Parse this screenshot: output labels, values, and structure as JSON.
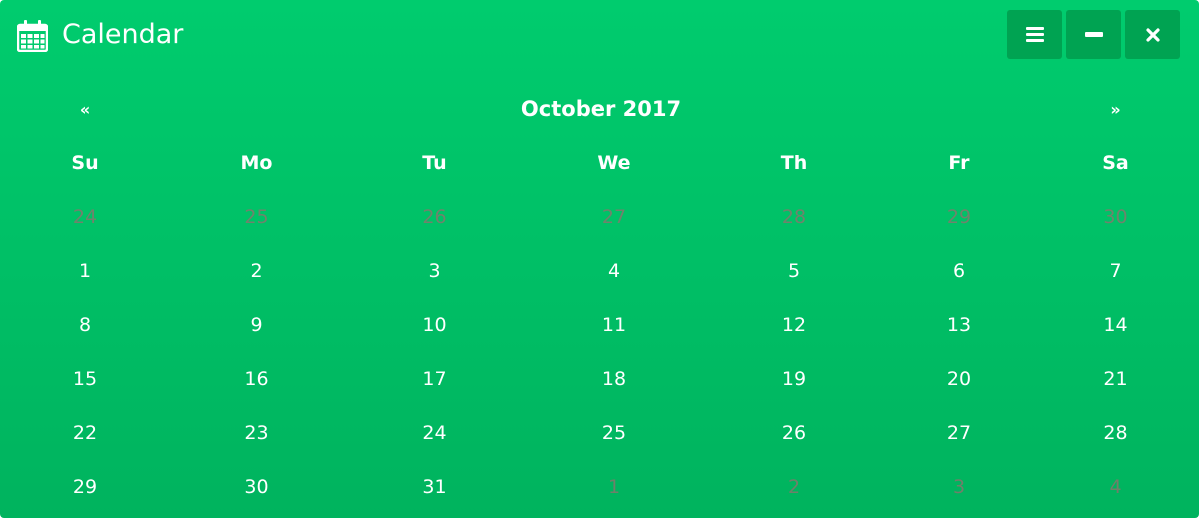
{
  "header": {
    "title": "Calendar",
    "title_icon": "calendar-icon",
    "buttons": [
      {
        "icon": "menu-icon",
        "label": "Menu"
      },
      {
        "icon": "minimize-icon",
        "label": "Minimize"
      },
      {
        "icon": "close-icon",
        "label": "Close"
      }
    ]
  },
  "calendar": {
    "prev_label": "«",
    "next_label": "»",
    "month_label": "October 2017",
    "weekdays": [
      "Su",
      "Mo",
      "Tu",
      "We",
      "Th",
      "Fr",
      "Sa"
    ],
    "weeks": [
      [
        {
          "d": "24",
          "muted": true
        },
        {
          "d": "25",
          "muted": true
        },
        {
          "d": "26",
          "muted": true
        },
        {
          "d": "27",
          "muted": true
        },
        {
          "d": "28",
          "muted": true
        },
        {
          "d": "29",
          "muted": true
        },
        {
          "d": "30",
          "muted": true
        }
      ],
      [
        {
          "d": "1"
        },
        {
          "d": "2"
        },
        {
          "d": "3"
        },
        {
          "d": "4"
        },
        {
          "d": "5"
        },
        {
          "d": "6"
        },
        {
          "d": "7"
        }
      ],
      [
        {
          "d": "8"
        },
        {
          "d": "9"
        },
        {
          "d": "10"
        },
        {
          "d": "11"
        },
        {
          "d": "12"
        },
        {
          "d": "13"
        },
        {
          "d": "14"
        }
      ],
      [
        {
          "d": "15"
        },
        {
          "d": "16"
        },
        {
          "d": "17"
        },
        {
          "d": "18"
        },
        {
          "d": "19"
        },
        {
          "d": "20"
        },
        {
          "d": "21"
        }
      ],
      [
        {
          "d": "22"
        },
        {
          "d": "23"
        },
        {
          "d": "24"
        },
        {
          "d": "25"
        },
        {
          "d": "26"
        },
        {
          "d": "27"
        },
        {
          "d": "28"
        }
      ],
      [
        {
          "d": "29"
        },
        {
          "d": "30"
        },
        {
          "d": "31"
        },
        {
          "d": "1",
          "muted": true
        },
        {
          "d": "2",
          "muted": true
        },
        {
          "d": "3",
          "muted": true
        },
        {
          "d": "4",
          "muted": true
        }
      ]
    ]
  },
  "colors": {
    "background_top": "#00cc6e",
    "background_bottom": "#00b35e",
    "button_bg": "#00a352",
    "text": "#ffffff",
    "muted_text": "#a0726e"
  }
}
